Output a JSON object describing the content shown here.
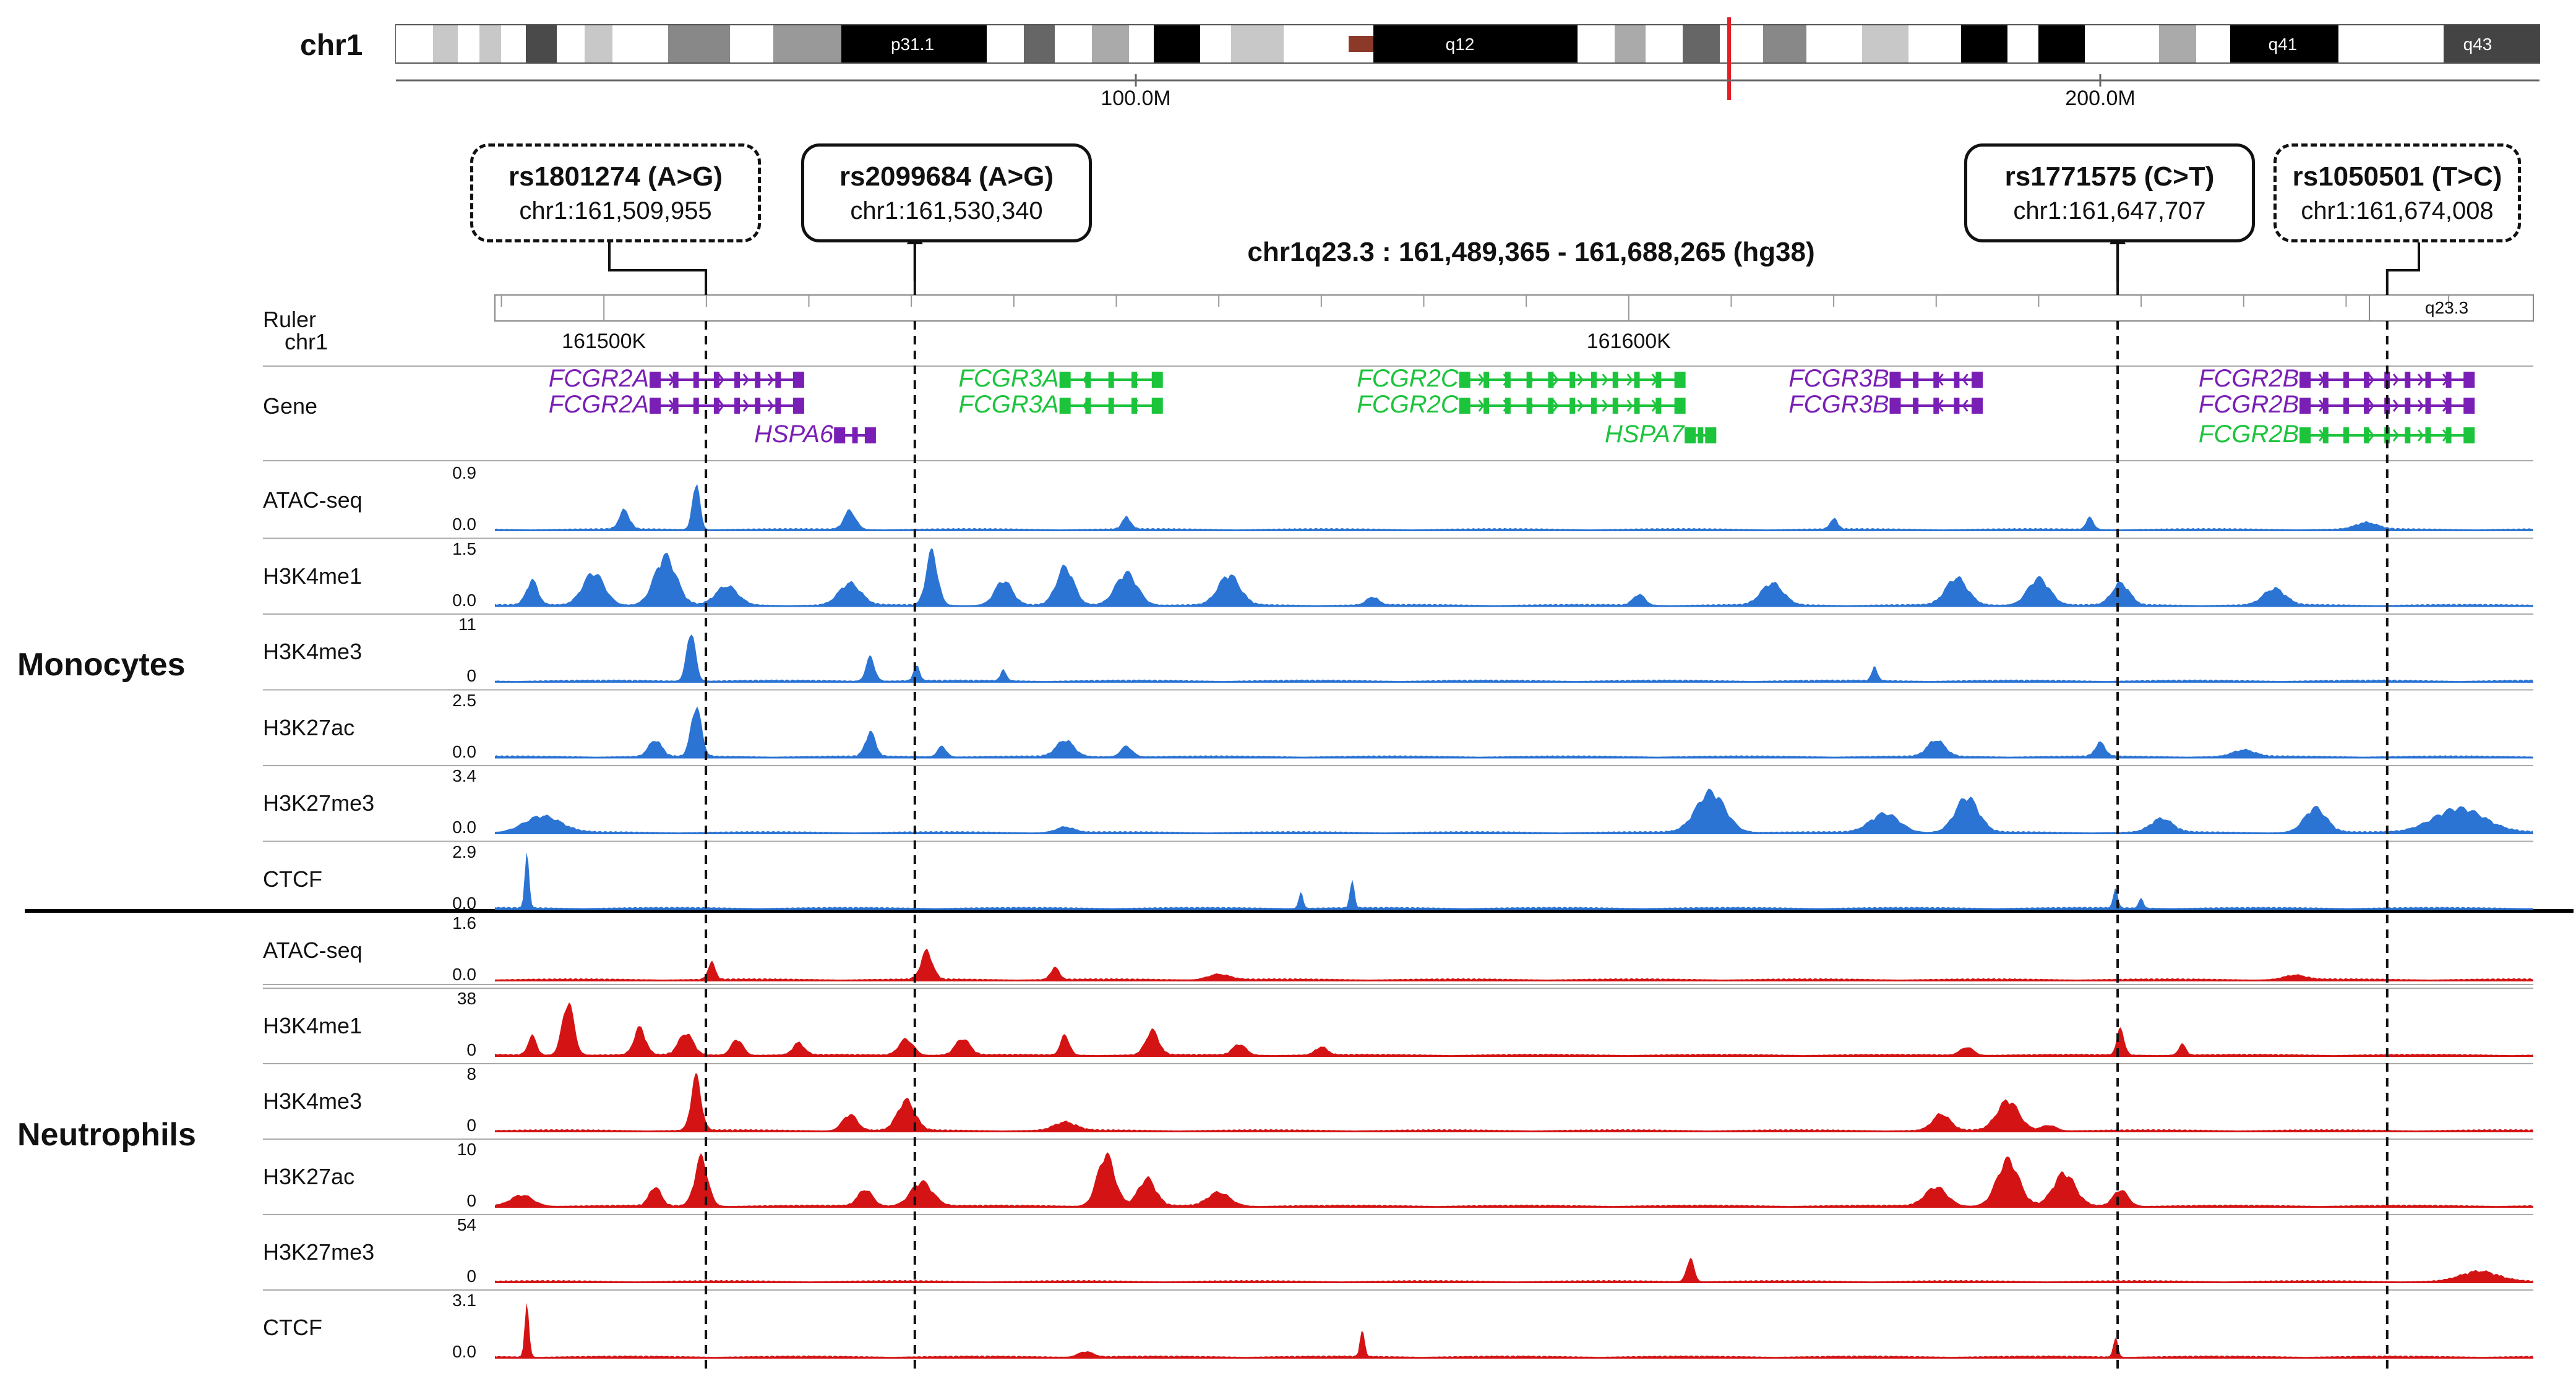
{
  "ideogram": {
    "chromosome": "chr1",
    "ticks": [
      "100.0M",
      "200.0M"
    ],
    "band_labels": [
      "p31.1",
      "q12",
      "q41",
      "q43"
    ]
  },
  "region": {
    "title": "chr1q23.3 : 161,489,365 - 161,688,265 (hg38)",
    "start": 161489365,
    "end": 161688265,
    "ruler_band": "q23.3",
    "ticks": [
      "161500K",
      "161600K"
    ]
  },
  "snps": [
    {
      "id": "rs1801274 (A>G)",
      "pos_label": "chr1:161,509,955",
      "position": 161509955,
      "style": "dashed"
    },
    {
      "id": "rs2099684 (A>G)",
      "pos_label": "chr1:161,530,340",
      "position": 161530340,
      "style": "solid"
    },
    {
      "id": "rs1771575 (C>T)",
      "pos_label": "chr1:161,647,707",
      "position": 161647707,
      "style": "solid"
    },
    {
      "id": "rs1050501 (T>C)",
      "pos_label": "chr1:161,674,008",
      "position": 161674008,
      "style": "dashed"
    }
  ],
  "labels": {
    "ruler": "Ruler",
    "ruler_chr": "chr1",
    "gene_track": "Gene",
    "monocytes": "Monocytes",
    "neutrophils": "Neutrophils"
  },
  "colors": {
    "monocyte_signal": "#2b74d4",
    "neutrophil_signal": "#d41414",
    "gene_minus": "#7a1fb5",
    "gene_plus": "#1cc43c",
    "highlight": "#e21f26"
  },
  "genes": [
    {
      "name": "FCGR2A",
      "row": 0,
      "strand": "+",
      "start": 161505000,
      "end": 161519000,
      "color": "purple"
    },
    {
      "name": "FCGR2A",
      "row": 1,
      "strand": "+",
      "start": 161505000,
      "end": 161519000,
      "color": "purple"
    },
    {
      "name": "HSPA6",
      "row": 2,
      "strand": "+",
      "start": 161523000,
      "end": 161526000,
      "color": "purple"
    },
    {
      "name": "FCGR3A",
      "row": 0,
      "strand": "-",
      "start": 161545000,
      "end": 161554000,
      "color": "green"
    },
    {
      "name": "FCGR3A",
      "row": 1,
      "strand": "-",
      "start": 161545000,
      "end": 161554000,
      "color": "green"
    },
    {
      "name": "FCGR2C",
      "row": 0,
      "strand": "+",
      "start": 161584000,
      "end": 161605000,
      "color": "green"
    },
    {
      "name": "FCGR2C",
      "row": 1,
      "strand": "+",
      "start": 161584000,
      "end": 161605000,
      "color": "green"
    },
    {
      "name": "HSPA7",
      "row": 2,
      "strand": "+",
      "start": 161606000,
      "end": 161608000,
      "color": "green"
    },
    {
      "name": "FCGR3B",
      "row": 0,
      "strand": "-",
      "start": 161626000,
      "end": 161634000,
      "color": "purple"
    },
    {
      "name": "FCGR3B",
      "row": 1,
      "strand": "-",
      "start": 161626000,
      "end": 161634000,
      "color": "purple"
    },
    {
      "name": "FCGR2B",
      "row": 0,
      "strand": "+",
      "start": 161666000,
      "end": 161682000,
      "color": "purple"
    },
    {
      "name": "FCGR2B",
      "row": 1,
      "strand": "+",
      "start": 161666000,
      "end": 161682000,
      "color": "purple"
    },
    {
      "name": "FCGR2B",
      "row": 2,
      "strand": "+",
      "start": 161666000,
      "end": 161682000,
      "color": "green"
    }
  ],
  "tracks": [
    {
      "group": "Monocytes",
      "name": "ATAC-seq",
      "max": "0.9",
      "min": "0.0"
    },
    {
      "group": "Monocytes",
      "name": "H3K4me1",
      "max": "1.5",
      "min": "0.0"
    },
    {
      "group": "Monocytes",
      "name": "H3K4me3",
      "max": "11",
      "min": "0"
    },
    {
      "group": "Monocytes",
      "name": "H3K27ac",
      "max": "2.5",
      "min": "0.0"
    },
    {
      "group": "Monocytes",
      "name": "H3K27me3",
      "max": "3.4",
      "min": "0.0"
    },
    {
      "group": "Monocytes",
      "name": "CTCF",
      "max": "2.9",
      "min": "0.0"
    },
    {
      "group": "Neutrophils",
      "name": "ATAC-seq",
      "max": "1.6",
      "min": "0.0"
    },
    {
      "group": "Neutrophils",
      "name": "H3K4me1",
      "max": "38",
      "min": "0"
    },
    {
      "group": "Neutrophils",
      "name": "H3K4me3",
      "max": "8",
      "min": "0"
    },
    {
      "group": "Neutrophils",
      "name": "H3K27ac",
      "max": "10",
      "min": "0"
    },
    {
      "group": "Neutrophils",
      "name": "H3K27me3",
      "max": "54",
      "min": "0"
    },
    {
      "group": "Neutrophils",
      "name": "CTCF",
      "max": "3.1",
      "min": "0.0"
    }
  ]
}
